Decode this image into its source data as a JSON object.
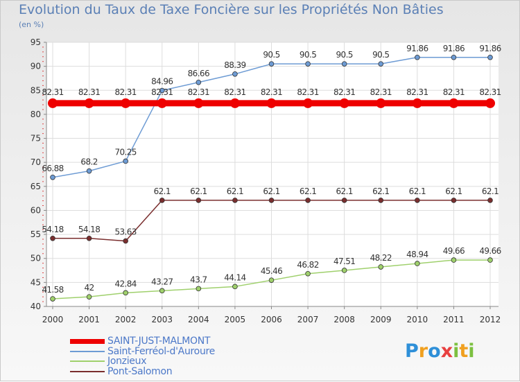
{
  "header": {
    "title": "Evolution du Taux de Taxe Foncière sur les Propriétés Non Bâties",
    "unit": "(en %)"
  },
  "logo": {
    "letters": [
      "P",
      "r",
      "o",
      "x",
      "i",
      "t",
      "i"
    ]
  },
  "chart_data": {
    "type": "line",
    "title": "Evolution du Taux de Taxe Foncière sur les Propriétés Non Bâties",
    "ylabel": "(en %)",
    "xlabel": "",
    "x": [
      "2000",
      "2001",
      "2002",
      "2003",
      "2004",
      "2005",
      "2006",
      "2007",
      "2008",
      "2009",
      "2010",
      "2011",
      "2012"
    ],
    "ylim": [
      40,
      95
    ],
    "yticks": [
      "40",
      "45",
      "50",
      "55",
      "60",
      "65",
      "70",
      "75",
      "80",
      "85",
      "90",
      "95"
    ],
    "grid": true,
    "legend_position": "bottom-left",
    "series": [
      {
        "name": "SAINT-JUST-MALMONT",
        "color": "#ee0000",
        "values": [
          82.31,
          82.31,
          82.31,
          82.31,
          82.31,
          82.31,
          82.31,
          82.31,
          82.31,
          82.31,
          82.31,
          82.31,
          82.31
        ],
        "labels": [
          "82.31",
          "82.31",
          "82.31",
          "82.31",
          "82.31",
          "82.31",
          "82.31",
          "82.31",
          "82.31",
          "82.31",
          "82.31",
          "82.31",
          "82.31"
        ]
      },
      {
        "name": "Saint-Ferréol-d'Auroure",
        "color": "#6d9bd4",
        "values": [
          66.88,
          68.2,
          70.25,
          84.96,
          86.66,
          88.39,
          90.5,
          90.5,
          90.5,
          90.5,
          91.86,
          91.86,
          91.86
        ],
        "labels": [
          "66.88",
          "68.2",
          "70.25",
          "84.96",
          "86.66",
          "88.39",
          "90.5",
          "90.5",
          "90.5",
          "90.5",
          "91.86",
          "91.86",
          "91.86"
        ]
      },
      {
        "name": "Jonzieux",
        "color": "#9fd06c",
        "values": [
          41.58,
          42,
          42.84,
          43.27,
          43.7,
          44.14,
          45.46,
          46.82,
          47.51,
          48.22,
          48.94,
          49.66,
          49.66
        ],
        "labels": [
          "41.58",
          "42",
          "42.84",
          "43.27",
          "43.7",
          "44.14",
          "45.46",
          "46.82",
          "47.51",
          "48.22",
          "48.94",
          "49.66",
          "49.66"
        ]
      },
      {
        "name": "Pont-Salomon",
        "color": "#7a2e2e",
        "values": [
          54.18,
          54.18,
          53.63,
          62.1,
          62.1,
          62.1,
          62.1,
          62.1,
          62.1,
          62.1,
          62.1,
          62.1,
          62.1
        ],
        "labels": [
          "54.18",
          "54.18",
          "53.63",
          "62.1",
          "62.1",
          "62.1",
          "62.1",
          "62.1",
          "62.1",
          "62.1",
          "62.1",
          "62.1",
          "62.1"
        ]
      }
    ]
  }
}
